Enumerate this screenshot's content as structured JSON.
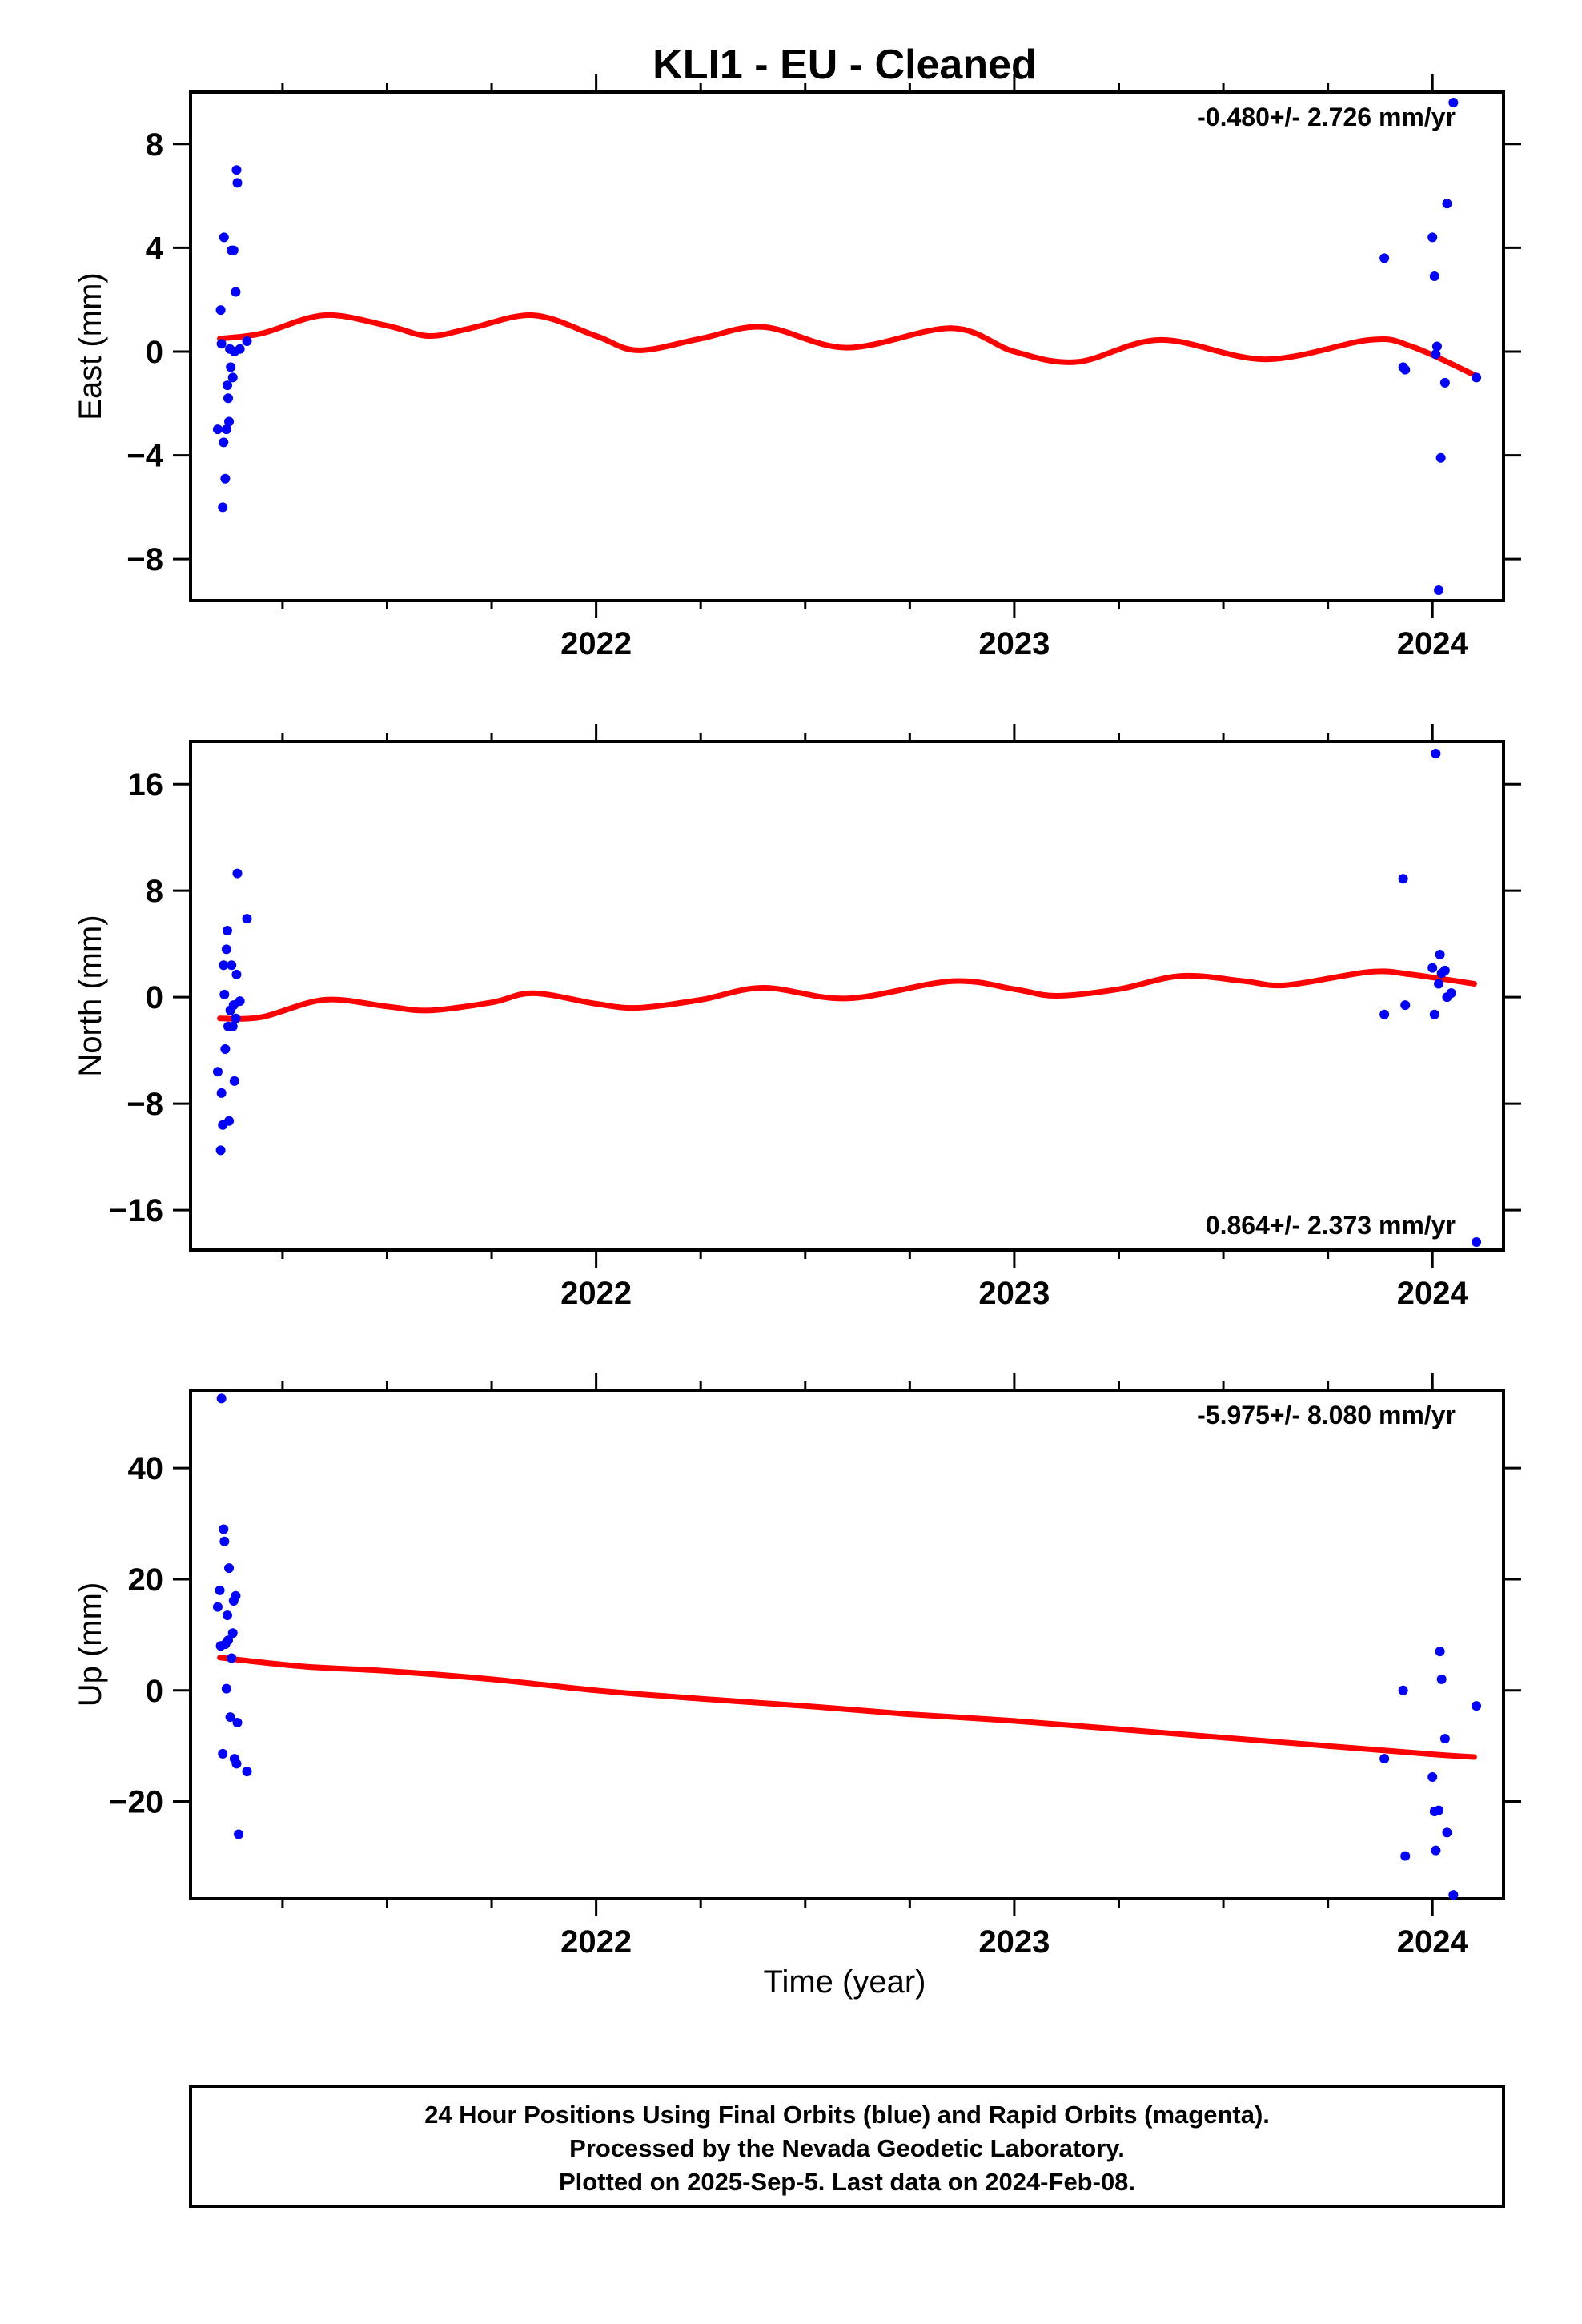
{
  "title": "KLI1  - EU - Cleaned",
  "xlabel": "Time (year)",
  "footer": {
    "line1": "24 Hour Positions Using Final Orbits (blue) and Rapid Orbits (magenta).",
    "line2": "Processed by the Nevada Geodetic Laboratory.",
    "line3": "Plotted on 2025-Sep-5. Last data on 2024-Feb-08."
  },
  "colors": {
    "data": "#0000ff",
    "model": "#ff0000",
    "axis": "#000000"
  },
  "chart_data": [
    {
      "type": "scatter",
      "ylabel": "East (mm)",
      "rate_text": "-0.480+/- 2.726 mm/yr",
      "rate_position": "top-right",
      "xlim": [
        2021.03,
        2024.17
      ],
      "ylim": [
        -9.6,
        10.0
      ],
      "x_ticks": [
        2022,
        2023,
        2024
      ],
      "y_ticks": [
        -8,
        -4,
        0,
        4,
        8
      ],
      "y_tick_labels": [
        "−8",
        "−4",
        "0",
        "4",
        "8"
      ],
      "points": [
        [
          2021.095,
          -3.0
        ],
        [
          2021.102,
          1.6
        ],
        [
          2021.104,
          0.3
        ],
        [
          2021.107,
          -6.0
        ],
        [
          2021.109,
          -3.5
        ],
        [
          2021.11,
          4.4
        ],
        [
          2021.113,
          -4.9
        ],
        [
          2021.116,
          -3.0
        ],
        [
          2021.118,
          -1.3
        ],
        [
          2021.12,
          -1.8
        ],
        [
          2021.122,
          -2.7
        ],
        [
          2021.124,
          0.1
        ],
        [
          2021.126,
          -0.6
        ],
        [
          2021.128,
          3.9
        ],
        [
          2021.131,
          -1.0
        ],
        [
          2021.133,
          3.9
        ],
        [
          2021.135,
          0.0
        ],
        [
          2021.138,
          2.3
        ],
        [
          2021.14,
          7.0
        ],
        [
          2021.142,
          6.5
        ],
        [
          2021.148,
          0.1
        ],
        [
          2021.165,
          0.4
        ],
        [
          2023.885,
          3.6
        ],
        [
          2023.93,
          -0.6
        ],
        [
          2023.935,
          -0.7
        ],
        [
          2024.0,
          4.4
        ],
        [
          2024.005,
          2.9
        ],
        [
          2024.008,
          -0.1
        ],
        [
          2024.011,
          0.2
        ],
        [
          2024.015,
          -9.2
        ],
        [
          2024.02,
          -4.1
        ],
        [
          2024.03,
          -1.2
        ],
        [
          2024.035,
          5.7
        ],
        [
          2024.05,
          9.6
        ],
        [
          2024.105,
          -1.0
        ]
      ],
      "model": [
        [
          2021.1,
          0.5
        ],
        [
          2021.2,
          0.7
        ],
        [
          2021.35,
          1.4
        ],
        [
          2021.5,
          1.0
        ],
        [
          2021.6,
          0.6
        ],
        [
          2021.7,
          0.9
        ],
        [
          2021.85,
          1.4
        ],
        [
          2022.0,
          0.6
        ],
        [
          2022.1,
          0.05
        ],
        [
          2022.25,
          0.5
        ],
        [
          2022.4,
          0.95
        ],
        [
          2022.6,
          0.15
        ],
        [
          2022.85,
          0.9
        ],
        [
          2023.0,
          0.0
        ],
        [
          2023.15,
          -0.4
        ],
        [
          2023.35,
          0.45
        ],
        [
          2023.6,
          -0.3
        ],
        [
          2023.85,
          0.45
        ],
        [
          2023.95,
          0.2
        ],
        [
          2024.1,
          -0.9
        ]
      ]
    },
    {
      "type": "scatter",
      "ylabel": "North (mm)",
      "rate_text": "0.864+/- 2.373 mm/yr",
      "rate_position": "bottom-right",
      "xlim": [
        2021.03,
        2024.17
      ],
      "ylim": [
        -19.0,
        19.2
      ],
      "x_ticks": [
        2022,
        2023,
        2024
      ],
      "y_ticks": [
        -16,
        -8,
        0,
        8,
        16
      ],
      "y_tick_labels": [
        "−16",
        "−8",
        "0",
        "8",
        "16"
      ],
      "points": [
        [
          2021.095,
          -5.6
        ],
        [
          2021.102,
          -11.5
        ],
        [
          2021.104,
          -7.2
        ],
        [
          2021.107,
          -9.6
        ],
        [
          2021.109,
          2.4
        ],
        [
          2021.111,
          0.2
        ],
        [
          2021.113,
          -3.9
        ],
        [
          2021.116,
          3.6
        ],
        [
          2021.118,
          5.0
        ],
        [
          2021.12,
          -2.2
        ],
        [
          2021.122,
          -9.3
        ],
        [
          2021.125,
          -1.0
        ],
        [
          2021.128,
          2.4
        ],
        [
          2021.131,
          -2.2
        ],
        [
          2021.133,
          -0.6
        ],
        [
          2021.135,
          -6.3
        ],
        [
          2021.138,
          -1.6
        ],
        [
          2021.14,
          1.7
        ],
        [
          2021.142,
          9.3
        ],
        [
          2021.148,
          -0.3
        ],
        [
          2021.165,
          5.9
        ],
        [
          2023.885,
          -1.3
        ],
        [
          2023.93,
          8.9
        ],
        [
          2023.935,
          -0.6
        ],
        [
          2024.0,
          2.2
        ],
        [
          2024.005,
          -1.3
        ],
        [
          2024.008,
          18.3
        ],
        [
          2024.015,
          1.0
        ],
        [
          2024.018,
          3.2
        ],
        [
          2024.022,
          1.8
        ],
        [
          2024.03,
          2.0
        ],
        [
          2024.035,
          0.0
        ],
        [
          2024.045,
          0.3
        ],
        [
          2024.105,
          -18.4
        ]
      ],
      "model": [
        [
          2021.1,
          -1.6
        ],
        [
          2021.2,
          -1.5
        ],
        [
          2021.35,
          -0.2
        ],
        [
          2021.5,
          -0.7
        ],
        [
          2021.6,
          -1.0
        ],
        [
          2021.75,
          -0.4
        ],
        [
          2021.85,
          0.3
        ],
        [
          2022.0,
          -0.5
        ],
        [
          2022.1,
          -0.8
        ],
        [
          2022.25,
          -0.2
        ],
        [
          2022.4,
          0.7
        ],
        [
          2022.6,
          -0.1
        ],
        [
          2022.85,
          1.2
        ],
        [
          2023.0,
          0.6
        ],
        [
          2023.1,
          0.1
        ],
        [
          2023.25,
          0.6
        ],
        [
          2023.4,
          1.6
        ],
        [
          2023.55,
          1.2
        ],
        [
          2023.65,
          0.9
        ],
        [
          2023.85,
          1.9
        ],
        [
          2023.95,
          1.7
        ],
        [
          2024.1,
          1.0
        ]
      ]
    },
    {
      "type": "scatter",
      "ylabel": "Up (mm)",
      "rate_text": "-5.975+/- 8.080 mm/yr",
      "rate_position": "top-right",
      "xlim": [
        2021.03,
        2024.17
      ],
      "ylim": [
        -37.5,
        54.0
      ],
      "x_ticks": [
        2022,
        2023,
        2024
      ],
      "y_ticks": [
        -20,
        0,
        20,
        40
      ],
      "y_tick_labels": [
        "−20",
        "0",
        "20",
        "40"
      ],
      "points": [
        [
          2021.095,
          15.0
        ],
        [
          2021.1,
          18.0
        ],
        [
          2021.102,
          8.0
        ],
        [
          2021.104,
          52.5
        ],
        [
          2021.107,
          -11.4
        ],
        [
          2021.109,
          29.0
        ],
        [
          2021.111,
          26.8
        ],
        [
          2021.113,
          8.3
        ],
        [
          2021.116,
          0.3
        ],
        [
          2021.118,
          13.5
        ],
        [
          2021.12,
          9.0
        ],
        [
          2021.122,
          22.0
        ],
        [
          2021.125,
          -4.8
        ],
        [
          2021.128,
          5.8
        ],
        [
          2021.131,
          10.3
        ],
        [
          2021.133,
          16.1
        ],
        [
          2021.135,
          -12.3
        ],
        [
          2021.138,
          17.0
        ],
        [
          2021.14,
          -13.2
        ],
        [
          2021.142,
          -5.8
        ],
        [
          2021.145,
          -25.9
        ],
        [
          2021.165,
          -14.6
        ],
        [
          2023.885,
          -12.3
        ],
        [
          2023.93,
          0.0
        ],
        [
          2023.935,
          -29.8
        ],
        [
          2024.0,
          -15.6
        ],
        [
          2024.005,
          -21.8
        ],
        [
          2024.008,
          -28.8
        ],
        [
          2024.015,
          -21.6
        ],
        [
          2024.018,
          7.0
        ],
        [
          2024.022,
          2.0
        ],
        [
          2024.03,
          -8.7
        ],
        [
          2024.035,
          -25.6
        ],
        [
          2024.05,
          -36.8
        ],
        [
          2024.105,
          -2.8
        ]
      ],
      "model": [
        [
          2021.1,
          5.9
        ],
        [
          2021.3,
          4.3
        ],
        [
          2021.5,
          3.5
        ],
        [
          2021.75,
          2.0
        ],
        [
          2022.0,
          0.0
        ],
        [
          2022.25,
          -1.5
        ],
        [
          2022.5,
          -2.8
        ],
        [
          2022.75,
          -4.3
        ],
        [
          2023.0,
          -5.5
        ],
        [
          2023.25,
          -7.0
        ],
        [
          2023.5,
          -8.5
        ],
        [
          2023.75,
          -10.0
        ],
        [
          2024.0,
          -11.5
        ],
        [
          2024.1,
          -12.0
        ]
      ]
    }
  ]
}
